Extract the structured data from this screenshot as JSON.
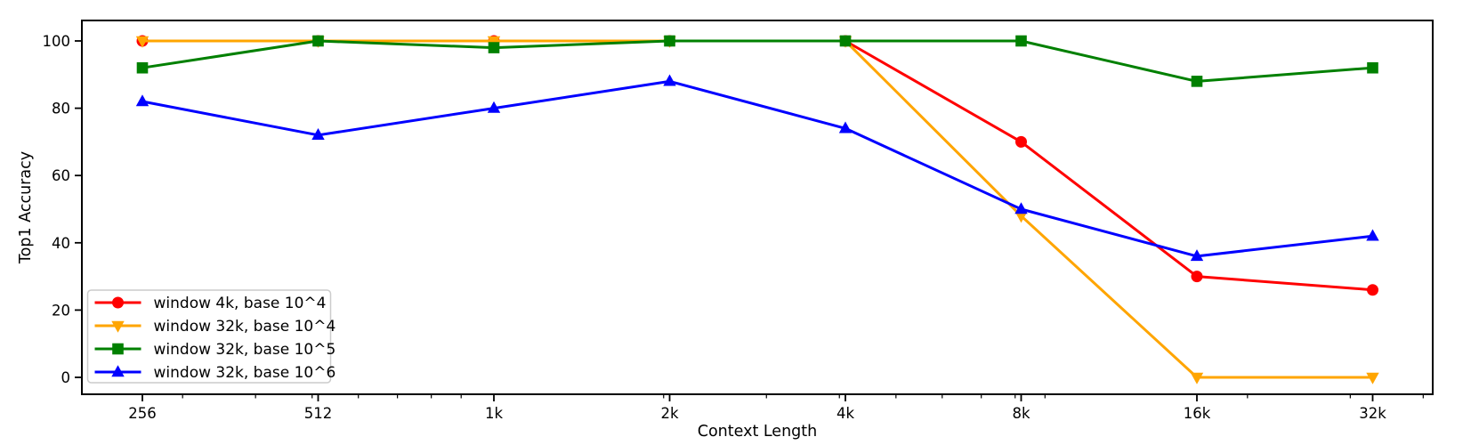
{
  "chart_data": {
    "type": "line",
    "title": "",
    "xlabel": "Context Length",
    "ylabel": "Top1 Accuracy",
    "x_scale": "log2",
    "x": [
      256,
      512,
      1024,
      2048,
      4096,
      8192,
      16384,
      32768
    ],
    "x_tick_labels": [
      "256",
      "512",
      "1k",
      "2k",
      "4k",
      "8k",
      "16k",
      "32k"
    ],
    "x_minor_ticks": [
      300,
      400,
      500,
      600,
      700,
      800,
      900,
      2000,
      3000,
      4000,
      5000,
      6000,
      7000,
      8000,
      9000,
      20000,
      30000,
      40000
    ],
    "y_ticks": [
      0,
      20,
      40,
      60,
      80,
      100
    ],
    "y_tick_labels": [
      "0",
      "20",
      "40",
      "60",
      "80",
      "100"
    ],
    "ylim": [
      -5,
      105
    ],
    "grid": false,
    "legend_position": "lower left",
    "series": [
      {
        "name": "window 4k, base 10^4",
        "color": "#ff0000",
        "marker": "circle",
        "values": [
          100,
          100,
          100,
          100,
          100,
          70,
          30,
          26
        ]
      },
      {
        "name": "window 32k, base 10^4",
        "color": "#ffa500",
        "marker": "triangle-down",
        "values": [
          100,
          100,
          100,
          100,
          100,
          48,
          0,
          0
        ]
      },
      {
        "name": "window 32k, base 10^5",
        "color": "#008000",
        "marker": "square",
        "values": [
          92,
          100,
          98,
          100,
          100,
          100,
          88,
          92
        ]
      },
      {
        "name": "window 32k, base 10^6",
        "color": "#0000ff",
        "marker": "triangle-up",
        "values": [
          82,
          72,
          80,
          88,
          74,
          50,
          36,
          42
        ]
      }
    ]
  },
  "style": {
    "spine_color": "#000000",
    "legend_border_color": "#cccccc",
    "legend_bg_color": "rgba(255,255,255,0.85)"
  }
}
